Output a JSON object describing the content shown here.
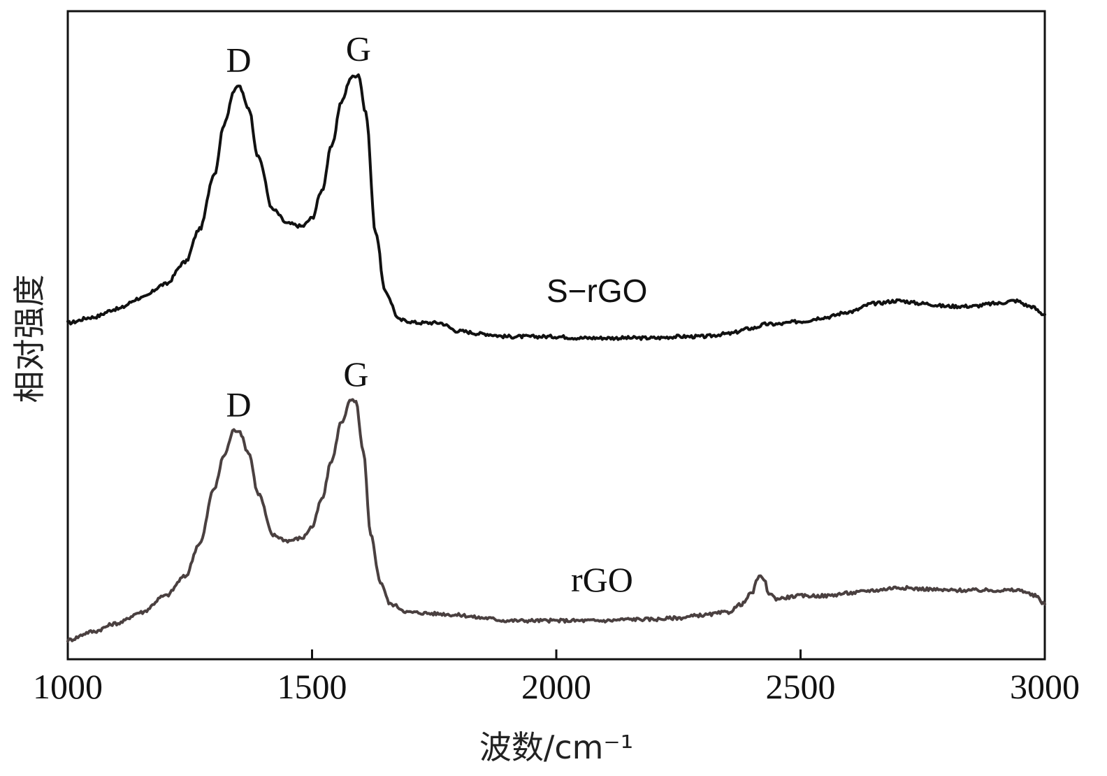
{
  "chart_data": {
    "type": "line",
    "title": "",
    "xlabel": "波数/cm⁻¹",
    "ylabel": "相对强度",
    "xlim": [
      1000,
      3000
    ],
    "ylim": [
      0,
      2.35
    ],
    "xticks": [
      1000,
      1500,
      2000,
      2500,
      3000
    ],
    "xtick_labels": [
      "1000",
      "1500",
      "2000",
      "2500",
      "3000"
    ],
    "yticks_shown": false,
    "grid": false,
    "series": [
      {
        "name": "S−rGO",
        "color": "#111111",
        "x": [
          1000,
          1050,
          1100,
          1150,
          1200,
          1240,
          1270,
          1300,
          1320,
          1340,
          1350,
          1370,
          1390,
          1420,
          1450,
          1480,
          1500,
          1520,
          1540,
          1560,
          1580,
          1595,
          1610,
          1630,
          1650,
          1680,
          1720,
          1760,
          1800,
          1850,
          1900,
          1950,
          2000,
          2050,
          2100,
          2150,
          2200,
          2250,
          2300,
          2350,
          2400,
          2430,
          2450,
          2500,
          2550,
          2600,
          2650,
          2700,
          2750,
          2800,
          2850,
          2900,
          2940,
          2970,
          3000
        ],
        "y": [
          1.22,
          1.24,
          1.27,
          1.31,
          1.36,
          1.44,
          1.56,
          1.76,
          1.94,
          2.06,
          2.08,
          2.0,
          1.82,
          1.63,
          1.58,
          1.57,
          1.6,
          1.7,
          1.86,
          2.02,
          2.11,
          2.12,
          1.98,
          1.55,
          1.33,
          1.23,
          1.22,
          1.22,
          1.19,
          1.18,
          1.17,
          1.17,
          1.17,
          1.165,
          1.165,
          1.165,
          1.165,
          1.17,
          1.17,
          1.18,
          1.2,
          1.215,
          1.215,
          1.225,
          1.24,
          1.26,
          1.29,
          1.3,
          1.29,
          1.28,
          1.28,
          1.29,
          1.3,
          1.28,
          1.25
        ]
      },
      {
        "name": "rGO",
        "color": "#4a4040",
        "x": [
          1000,
          1050,
          1100,
          1150,
          1200,
          1240,
          1270,
          1300,
          1320,
          1340,
          1350,
          1370,
          1390,
          1420,
          1450,
          1480,
          1500,
          1520,
          1540,
          1560,
          1580,
          1590,
          1605,
          1620,
          1640,
          1660,
          1700,
          1760,
          1800,
          1850,
          1900,
          1950,
          2000,
          2050,
          2100,
          2150,
          2200,
          2250,
          2300,
          2350,
          2380,
          2400,
          2415,
          2425,
          2435,
          2450,
          2500,
          2550,
          2600,
          2650,
          2700,
          2750,
          2800,
          2850,
          2900,
          2950,
          2980,
          3000
        ],
        "y": [
          0.07,
          0.1,
          0.13,
          0.17,
          0.23,
          0.3,
          0.42,
          0.62,
          0.74,
          0.83,
          0.83,
          0.75,
          0.6,
          0.45,
          0.43,
          0.44,
          0.48,
          0.58,
          0.72,
          0.86,
          0.94,
          0.93,
          0.75,
          0.45,
          0.28,
          0.2,
          0.17,
          0.165,
          0.16,
          0.15,
          0.14,
          0.14,
          0.14,
          0.14,
          0.14,
          0.145,
          0.145,
          0.15,
          0.16,
          0.17,
          0.2,
          0.24,
          0.3,
          0.29,
          0.24,
          0.22,
          0.23,
          0.23,
          0.24,
          0.25,
          0.26,
          0.255,
          0.25,
          0.25,
          0.25,
          0.25,
          0.23,
          0.2
        ]
      }
    ],
    "annotations": [
      {
        "text": "D",
        "series": "S−rGO",
        "x": 1350,
        "y": 2.08
      },
      {
        "text": "G",
        "series": "S−rGO",
        "x": 1595,
        "y": 2.12
      },
      {
        "text": "S−rGO",
        "series": "S−rGO",
        "x": 1980,
        "y": 1.25
      },
      {
        "text": "D",
        "series": "rGO",
        "x": 1350,
        "y": 0.83
      },
      {
        "text": "G",
        "series": "rGO",
        "x": 1590,
        "y": 0.94
      },
      {
        "text": "rGO",
        "series": "rGO",
        "x": 2030,
        "y": 0.2
      }
    ]
  }
}
